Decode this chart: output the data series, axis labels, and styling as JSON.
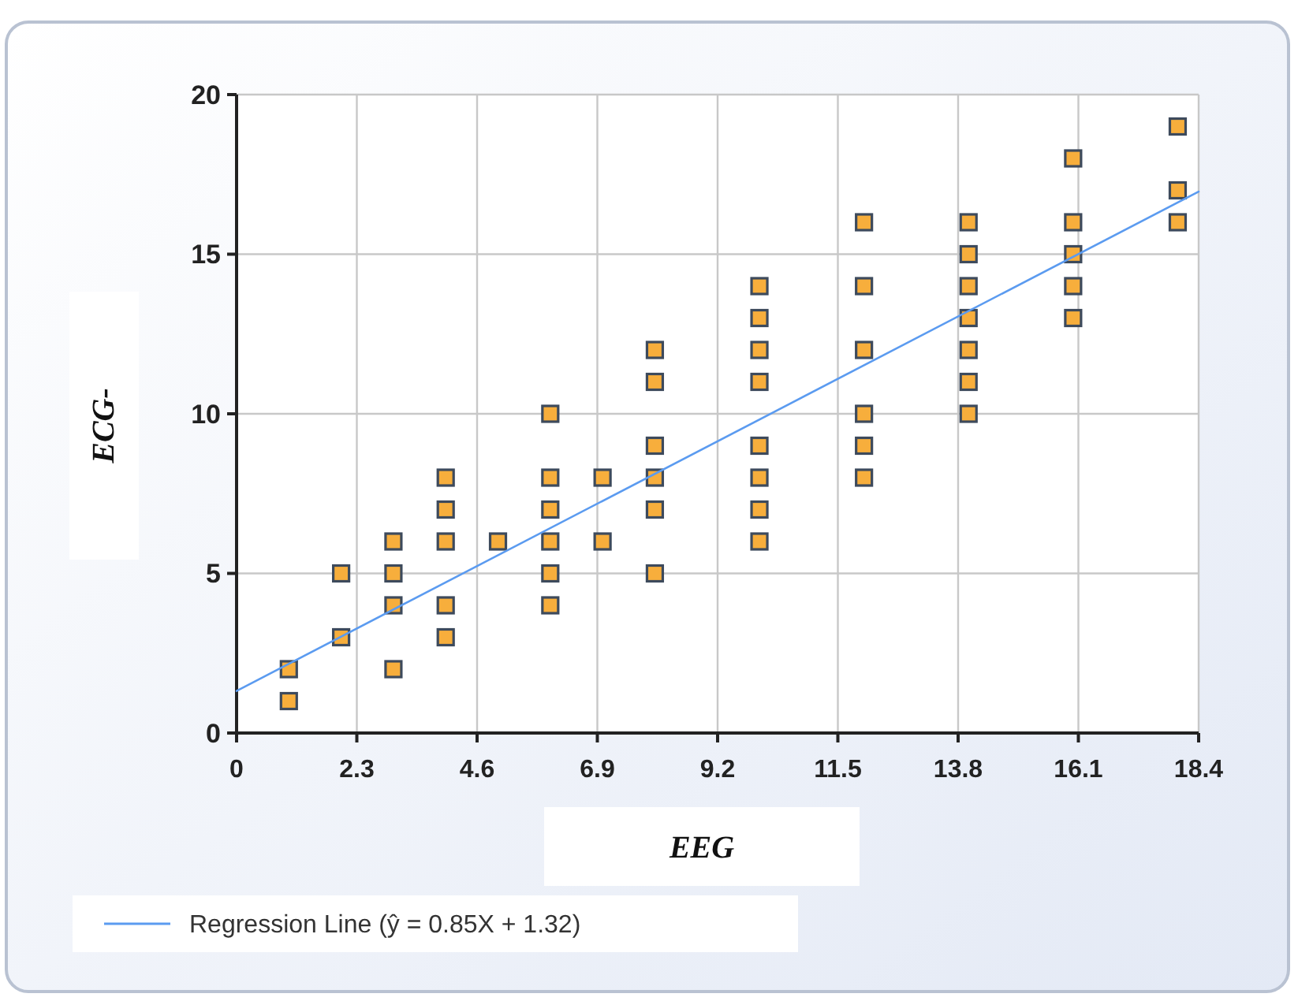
{
  "chart_data": {
    "type": "scatter",
    "xlabel": "EEG",
    "ylabel": "ECG-",
    "series": [
      {
        "color": "#f7ae3c",
        "marker": "square",
        "x": [
          1,
          1,
          2,
          2,
          3,
          3,
          3,
          3,
          4,
          4,
          4,
          4,
          4,
          5,
          6,
          6,
          6,
          6,
          6,
          6,
          7,
          7,
          8,
          8,
          8,
          8,
          8,
          8,
          10,
          10,
          10,
          10,
          10,
          10,
          10,
          10,
          12,
          12,
          12,
          12,
          12,
          12,
          14,
          14,
          14,
          14,
          14,
          14,
          14,
          16,
          16,
          16,
          16,
          16,
          18,
          18,
          18
        ],
        "values": [
          2,
          1,
          5,
          3,
          6,
          5,
          4,
          2,
          8,
          7,
          6,
          4,
          3,
          6,
          10,
          8,
          7,
          6,
          5,
          4,
          8,
          6,
          12,
          11,
          9,
          8,
          7,
          5,
          14,
          13,
          12,
          11,
          9,
          8,
          7,
          6,
          16,
          14,
          12,
          10,
          9,
          8,
          16,
          15,
          14,
          13,
          12,
          11,
          10,
          18,
          16,
          15,
          14,
          13,
          19,
          17,
          16
        ]
      },
      {
        "type": "line",
        "name": "Regression Line (ŷ = 0.85X + 1.32)",
        "color": "#5b9bf0",
        "marker": "none",
        "line_style": "solid",
        "x": [
          0,
          18.4
        ],
        "values": [
          1.32,
          16.96
        ]
      }
    ],
    "xlim": [
      0,
      18.4
    ],
    "xticks": [
      0,
      2.3,
      4.6,
      6.9,
      9.2,
      11.5,
      13.8,
      16.1,
      18.4
    ],
    "ylim": [
      0,
      20
    ],
    "yticks": [
      0,
      5,
      10,
      15,
      20
    ],
    "grid": true,
    "legend": "bottom left"
  }
}
